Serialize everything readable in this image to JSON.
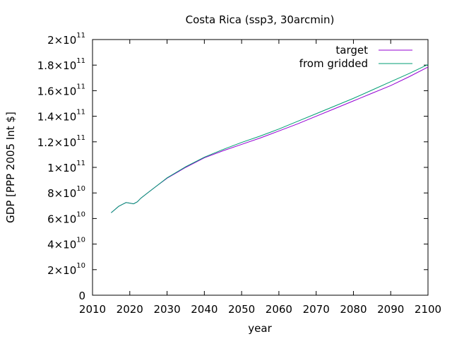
{
  "chart_data": {
    "type": "line",
    "title": "Costa Rica (ssp3, 30arcmin)",
    "xlabel": "year",
    "ylabel": "GDP [PPP 2005 Int $]",
    "xlim": [
      2010,
      2100
    ],
    "ylim": [
      0,
      200000000000
    ],
    "x_ticks": [
      "2010",
      "2020",
      "2030",
      "2040",
      "2050",
      "2060",
      "2070",
      "2080",
      "2090",
      "2100"
    ],
    "y_ticks": [
      {
        "mant": "0",
        "exp": ""
      },
      {
        "mant": "2×10",
        "exp": "10"
      },
      {
        "mant": "4×10",
        "exp": "10"
      },
      {
        "mant": "6×10",
        "exp": "10"
      },
      {
        "mant": "8×10",
        "exp": "10"
      },
      {
        "mant": "1×10",
        "exp": "11"
      },
      {
        "mant": "1.2×10",
        "exp": "11"
      },
      {
        "mant": "1.4×10",
        "exp": "11"
      },
      {
        "mant": "1.6×10",
        "exp": "11"
      },
      {
        "mant": "1.8×10",
        "exp": "11"
      },
      {
        "mant": "2×10",
        "exp": "11"
      }
    ],
    "legend_position": "top-right",
    "grid": false,
    "series": [
      {
        "name": "target",
        "color": "#9400d3",
        "x": [
          2015,
          2016,
          2017,
          2018,
          2019,
          2020,
          2021,
          2022,
          2023,
          2025,
          2027,
          2030,
          2035,
          2040,
          2045,
          2050,
          2055,
          2060,
          2065,
          2070,
          2075,
          2080,
          2085,
          2090,
          2095,
          2100
        ],
        "y": [
          64500000000,
          67000000000,
          69500000000,
          71000000000,
          72500000000,
          72000000000,
          71500000000,
          73000000000,
          76000000000,
          80500000000,
          85000000000,
          91500000000,
          100000000000,
          107500000000,
          113000000000,
          118000000000,
          123000000000,
          128500000000,
          134000000000,
          140000000000,
          146000000000,
          152000000000,
          158000000000,
          164000000000,
          171000000000,
          178500000000
        ]
      },
      {
        "name": "from gridded",
        "color": "#009e73",
        "x": [
          2015,
          2016,
          2017,
          2018,
          2019,
          2020,
          2021,
          2022,
          2023,
          2025,
          2027,
          2030,
          2035,
          2040,
          2045,
          2050,
          2055,
          2060,
          2065,
          2070,
          2075,
          2080,
          2085,
          2090,
          2095,
          2100
        ],
        "y": [
          64500000000,
          67000000000,
          69500000000,
          71000000000,
          72500000000,
          72000000000,
          71500000000,
          73000000000,
          76000000000,
          80500000000,
          85000000000,
          91800000000,
          100500000000,
          108000000000,
          114000000000,
          119500000000,
          124500000000,
          130000000000,
          136000000000,
          142000000000,
          148000000000,
          154000000000,
          160500000000,
          167000000000,
          173500000000,
          180500000000
        ]
      }
    ]
  }
}
